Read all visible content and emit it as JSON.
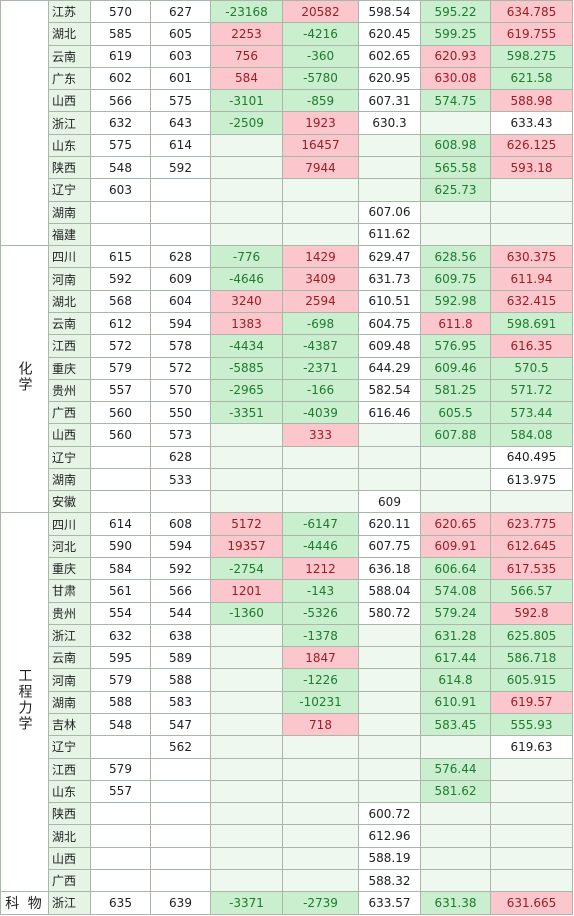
{
  "sections": [
    {
      "subject": null,
      "rows": [
        [
          "江苏",
          570,
          627,
          -23168,
          20582,
          598.54,
          595.22,
          634.785
        ],
        [
          "湖北",
          585,
          605,
          2253,
          -4216,
          620.45,
          599.25,
          619.755
        ],
        [
          "云南",
          619,
          603,
          756,
          -360,
          602.65,
          620.93,
          598.275
        ],
        [
          "广东",
          602,
          601,
          584,
          -5780,
          620.95,
          630.08,
          621.58
        ],
        [
          "山西",
          566,
          575,
          -3101,
          -859,
          607.31,
          574.75,
          588.98
        ],
        [
          "浙江",
          632,
          643,
          -2509,
          1923,
          630.3,
          null,
          633.43
        ],
        [
          "山东",
          575,
          614,
          null,
          16457,
          null,
          608.98,
          626.125
        ],
        [
          "陕西",
          548,
          592,
          null,
          7944,
          null,
          565.58,
          593.18
        ],
        [
          "辽宁",
          603,
          null,
          null,
          null,
          null,
          625.73,
          null
        ],
        [
          "湖南",
          null,
          null,
          null,
          null,
          607.06,
          null,
          null
        ],
        [
          "福建",
          null,
          null,
          null,
          null,
          611.62,
          null,
          null
        ]
      ]
    },
    {
      "subject": "化学",
      "rows": [
        [
          "四川",
          615,
          628,
          -776,
          1429,
          629.47,
          628.56,
          630.375
        ],
        [
          "河南",
          592,
          609,
          -4646,
          3409,
          631.73,
          609.75,
          611.94
        ],
        [
          "湖北",
          568,
          604,
          3240,
          2594,
          610.51,
          592.98,
          632.415
        ],
        [
          "云南",
          612,
          594,
          1383,
          -698,
          604.75,
          611.8,
          598.691
        ],
        [
          "江西",
          572,
          578,
          -4434,
          -4387,
          609.48,
          576.95,
          616.35
        ],
        [
          "重庆",
          579,
          572,
          -5885,
          -2371,
          644.29,
          609.46,
          570.5
        ],
        [
          "贵州",
          557,
          570,
          -2965,
          -166,
          582.54,
          581.25,
          571.72
        ],
        [
          "广西",
          560,
          550,
          -3351,
          -4039,
          616.46,
          605.5,
          573.44
        ],
        [
          "山西",
          560,
          573,
          null,
          333,
          null,
          607.88,
          584.08
        ],
        [
          "辽宁",
          null,
          628,
          null,
          null,
          null,
          null,
          640.495
        ],
        [
          "湖南",
          null,
          533,
          null,
          null,
          null,
          null,
          613.975
        ],
        [
          "安徽",
          null,
          null,
          null,
          null,
          609,
          null,
          null
        ]
      ]
    },
    {
      "subject": "工程力学",
      "rows": [
        [
          "四川",
          614,
          608,
          5172,
          -6147,
          620.11,
          620.65,
          623.775
        ],
        [
          "河北",
          590,
          594,
          19357,
          -4446,
          607.75,
          609.91,
          612.645
        ],
        [
          "重庆",
          584,
          592,
          -2754,
          1212,
          636.18,
          606.64,
          617.535
        ],
        [
          "甘肃",
          561,
          566,
          1201,
          -143,
          588.04,
          574.08,
          566.57
        ],
        [
          "贵州",
          554,
          544,
          -1360,
          -5326,
          580.72,
          579.24,
          592.8
        ],
        [
          "浙江",
          632,
          638,
          null,
          -1378,
          null,
          631.28,
          625.805
        ],
        [
          "云南",
          595,
          589,
          null,
          1847,
          null,
          617.44,
          586.718
        ],
        [
          "河南",
          579,
          588,
          null,
          -1226,
          null,
          614.8,
          605.915
        ],
        [
          "湖南",
          588,
          583,
          null,
          -10231,
          null,
          610.91,
          619.57
        ],
        [
          "吉林",
          548,
          547,
          null,
          718,
          null,
          583.45,
          555.93
        ],
        [
          "辽宁",
          null,
          562,
          null,
          null,
          null,
          null,
          619.63
        ],
        [
          "江西",
          579,
          null,
          null,
          null,
          null,
          576.44,
          null
        ],
        [
          "山东",
          557,
          null,
          null,
          null,
          null,
          581.62,
          null
        ],
        [
          "陕西",
          null,
          null,
          null,
          null,
          600.72,
          null,
          null
        ],
        [
          "湖北",
          null,
          null,
          null,
          null,
          612.96,
          null,
          null
        ],
        [
          "山西",
          null,
          null,
          null,
          null,
          588.19,
          null,
          null
        ],
        [
          "广西",
          null,
          null,
          null,
          null,
          588.32,
          null,
          null
        ]
      ]
    },
    {
      "subject": "科 物",
      "rows": [
        [
          "浙江",
          635,
          639,
          -3371,
          -2739,
          633.57,
          631.38,
          631.665
        ]
      ]
    }
  ]
}
